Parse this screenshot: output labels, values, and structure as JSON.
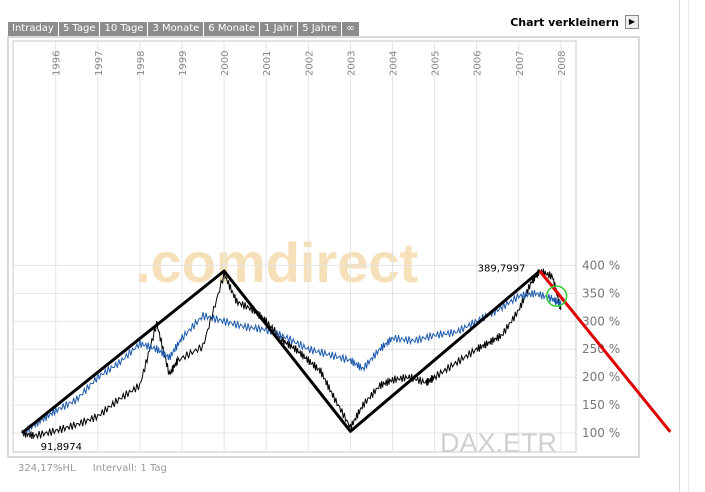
{
  "tabs": [
    "Intraday",
    "5 Tage",
    "10 Tage",
    "3 Monate",
    "6 Monate",
    "1 Jahr",
    "5 Jahre",
    "∞"
  ],
  "toggle_label": "Chart verkleinern",
  "watermark": "DAX.ETR",
  "footer": {
    "change": "324,17%HL",
    "interval": "Intervall: 1 Tag"
  },
  "chart_data": {
    "type": "line",
    "x_ticks": [
      "1996",
      "1997",
      "1998",
      "1999",
      "2000",
      "2001",
      "2002",
      "2003",
      "2004",
      "2005",
      "2006",
      "2007",
      "2008"
    ],
    "y_ticks": [
      "100 %",
      "150 %",
      "200 %",
      "250 %",
      "300 %",
      "350 %",
      "400 %"
    ],
    "ylim": [
      100,
      400
    ],
    "annotations": [
      {
        "text": "91,8974",
        "x": 1995.5,
        "y": 95
      },
      {
        "text": "389,7997",
        "x": 2007.4,
        "y": 389
      }
    ],
    "series": [
      {
        "color": "#000000",
        "points": [
          [
            1995.2,
            100
          ],
          [
            1995.5,
            95
          ],
          [
            1996,
            104
          ],
          [
            1996.5,
            115
          ],
          [
            1997,
            130
          ],
          [
            1997.5,
            160
          ],
          [
            1998,
            185
          ],
          [
            1998.4,
            296
          ],
          [
            1998.7,
            205
          ],
          [
            1998.9,
            230
          ],
          [
            1999.5,
            255
          ],
          [
            2000,
            385
          ],
          [
            2000.3,
            335
          ],
          [
            2000.7,
            320
          ],
          [
            2001,
            300
          ],
          [
            2001.4,
            265
          ],
          [
            2001.7,
            250
          ],
          [
            2002,
            230
          ],
          [
            2002.3,
            210
          ],
          [
            2002.6,
            165
          ],
          [
            2003,
            110
          ],
          [
            2003.3,
            150
          ],
          [
            2003.7,
            185
          ],
          [
            2004,
            195
          ],
          [
            2004.4,
            200
          ],
          [
            2004.8,
            190
          ],
          [
            2005,
            200
          ],
          [
            2005.5,
            225
          ],
          [
            2006,
            250
          ],
          [
            2006.3,
            262
          ],
          [
            2006.6,
            275
          ],
          [
            2007,
            320
          ],
          [
            2007.3,
            370
          ],
          [
            2007.5,
            390
          ],
          [
            2007.8,
            380
          ],
          [
            2008,
            320
          ]
        ]
      },
      {
        "color": "#1f5cad",
        "points": [
          [
            1995.2,
            100
          ],
          [
            1995.6,
            120
          ],
          [
            1996,
            140
          ],
          [
            1996.5,
            160
          ],
          [
            1997,
            200
          ],
          [
            1997.5,
            225
          ],
          [
            1998,
            260
          ],
          [
            1998.4,
            250
          ],
          [
            1998.7,
            235
          ],
          [
            1999,
            270
          ],
          [
            1999.5,
            310
          ],
          [
            2000,
            300
          ],
          [
            2000.5,
            290
          ],
          [
            2001,
            285
          ],
          [
            2001.5,
            270
          ],
          [
            2002,
            250
          ],
          [
            2002.5,
            240
          ],
          [
            2003,
            230
          ],
          [
            2003.3,
            215
          ],
          [
            2003.7,
            250
          ],
          [
            2004,
            270
          ],
          [
            2004.5,
            265
          ],
          [
            2005,
            275
          ],
          [
            2005.5,
            280
          ],
          [
            2006,
            300
          ],
          [
            2006.5,
            320
          ],
          [
            2007,
            345
          ],
          [
            2007.4,
            350
          ],
          [
            2007.8,
            340
          ],
          [
            2008,
            330
          ]
        ]
      }
    ],
    "trendlines": [
      {
        "color": "#000000",
        "points": [
          [
            1995.2,
            100
          ],
          [
            2000,
            390
          ],
          [
            2003,
            103
          ],
          [
            2007.5,
            390
          ]
        ]
      },
      {
        "color": "#e00000",
        "points": [
          [
            2007.5,
            390
          ],
          [
            2010.6,
            102
          ]
        ]
      }
    ],
    "marker": {
      "color": "#33cc33",
      "x": 2007.9,
      "y": 345
    }
  }
}
